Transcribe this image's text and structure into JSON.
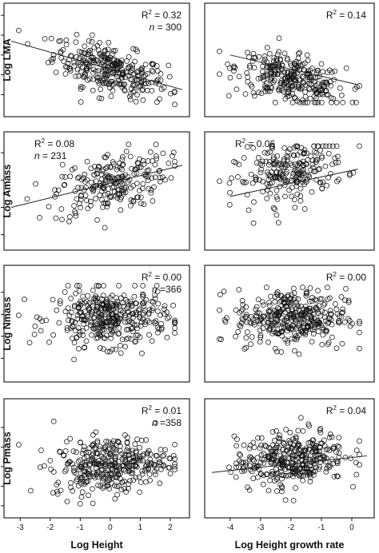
{
  "chart_data": [
    {
      "type": "scatter",
      "row": 0,
      "col": 0,
      "ylabel": "Log LMA",
      "xlabel": "",
      "xlim": [
        -3.3,
        2.4
      ],
      "ylim": [
        1.65,
        2.65
      ],
      "yticks": [
        "1.8",
        "2.0",
        "2.2",
        "2.4",
        "2.6"
      ],
      "xticks": [],
      "annotations": [
        "R2 = 0.32",
        "n = 300"
      ],
      "fit": [
        [
          -3.3,
          2.34
        ],
        [
          2.4,
          1.85
        ]
      ],
      "cloud": {
        "count": 300,
        "xmean": 0.0,
        "xsd": 0.95,
        "slope": -0.085,
        "intercept": 2.05,
        "noise": 0.12,
        "ymin": 1.7,
        "ymax": 2.58
      }
    },
    {
      "type": "scatter",
      "row": 0,
      "col": 1,
      "ylabel": "",
      "xlabel": "",
      "xlim": [
        -4.6,
        0.5
      ],
      "ylim": [
        1.65,
        2.65
      ],
      "yticks": [],
      "xticks": [],
      "annotations": [
        "R2 = 0.14"
      ],
      "fit": [
        [
          -4.0,
          2.2
        ],
        [
          0.2,
          1.9
        ]
      ],
      "cloud": {
        "count": 300,
        "xmean": -2.0,
        "xsd": 0.9,
        "slope": -0.07,
        "intercept": 1.95,
        "noise": 0.12,
        "ymin": 1.72,
        "ymax": 2.58
      }
    },
    {
      "type": "scatter",
      "row": 1,
      "col": 0,
      "ylabel": "Log Amass",
      "xlabel": "",
      "xlim": [
        -3.3,
        2.4
      ],
      "ylim": [
        -2.15,
        -0.25
      ],
      "yticks": [
        "-2.0",
        "-1.5",
        "-1.0",
        "-0.5"
      ],
      "xticks": [],
      "annotations": [
        "R2 = 0.08",
        "n = 231"
      ],
      "fit": [
        [
          -3.3,
          -1.5
        ],
        [
          2.4,
          -0.73
        ]
      ],
      "cloud": {
        "count": 231,
        "xmean": 0.0,
        "xsd": 0.95,
        "slope": 0.13,
        "intercept": -1.05,
        "noise": 0.28,
        "ymin": -2.0,
        "ymax": -0.35
      }
    },
    {
      "type": "scatter",
      "row": 1,
      "col": 1,
      "ylabel": "",
      "xlabel": "",
      "xlim": [
        -4.6,
        0.5
      ],
      "ylim": [
        -2.15,
        -0.25
      ],
      "yticks": [],
      "xticks": [],
      "annotations": [
        "R2 = 0.06"
      ],
      "fit": [
        [
          -4.0,
          -1.3
        ],
        [
          0.2,
          -0.8
        ]
      ],
      "cloud": {
        "count": 231,
        "xmean": -2.0,
        "xsd": 0.9,
        "slope": 0.12,
        "intercept": -0.85,
        "noise": 0.28,
        "ymin": -2.0,
        "ymax": -0.38
      }
    },
    {
      "type": "scatter",
      "row": 2,
      "col": 0,
      "ylabel": "Log Nmass",
      "xlabel": "",
      "xlim": [
        -3.3,
        2.4
      ],
      "ylim": [
        0.85,
        1.78
      ],
      "yticks": [
        "1.0",
        "1.2",
        "1.4",
        "1.6"
      ],
      "xticks": [],
      "annotations": [
        "R2 = 0.00",
        "n =366"
      ],
      "fit": [],
      "cloud": {
        "count": 366,
        "xmean": 0.0,
        "xsd": 0.95,
        "slope": 0.0,
        "intercept": 1.37,
        "noise": 0.13,
        "ymin": 0.92,
        "ymax": 1.66
      }
    },
    {
      "type": "scatter",
      "row": 2,
      "col": 1,
      "ylabel": "",
      "xlabel": "",
      "xlim": [
        -4.6,
        0.5
      ],
      "ylim": [
        0.85,
        1.78
      ],
      "yticks": [],
      "xticks": [],
      "annotations": [
        "R2 = 0.00"
      ],
      "fit": [],
      "cloud": {
        "count": 366,
        "xmean": -2.0,
        "xsd": 0.9,
        "slope": 0.0,
        "intercept": 1.37,
        "noise": 0.13,
        "ymin": 0.92,
        "ymax": 1.66
      }
    },
    {
      "type": "scatter",
      "row": 3,
      "col": 0,
      "ylabel": "Log Pmass",
      "xlabel": "Log Height",
      "xlim": [
        -3.3,
        2.4
      ],
      "ylim": [
        -0.25,
        0.82
      ],
      "yticks": [
        "-0.2",
        "0.0",
        "0.2",
        "0.4",
        "0.6"
      ],
      "xticks": [
        "-3",
        "-2",
        "-1",
        "0",
        "1",
        "2"
      ],
      "annotations": [
        "R2 = 0.01",
        "n =358"
      ],
      "fit": [],
      "cloud": {
        "count": 358,
        "xmean": 0.0,
        "xsd": 0.95,
        "slope": 0.03,
        "intercept": 0.22,
        "noise": 0.14,
        "ymin": -0.18,
        "ymax": 0.7
      }
    },
    {
      "type": "scatter",
      "row": 3,
      "col": 1,
      "ylabel": "",
      "xlabel": "Log Height growth rate",
      "xlim": [
        -4.6,
        0.5
      ],
      "ylim": [
        -0.25,
        0.82
      ],
      "yticks": [],
      "xticks": [
        "-4",
        "-3",
        "-2",
        "-1",
        "0"
      ],
      "annotations": [
        "R2 = 0.04"
      ],
      "fit": [
        [
          -4.6,
          0.14
        ],
        [
          0.5,
          0.31
        ]
      ],
      "cloud": {
        "count": 358,
        "xmean": -2.0,
        "xsd": 0.9,
        "slope": 0.035,
        "intercept": 0.28,
        "noise": 0.14,
        "ymin": -0.18,
        "ymax": 0.7
      }
    }
  ]
}
